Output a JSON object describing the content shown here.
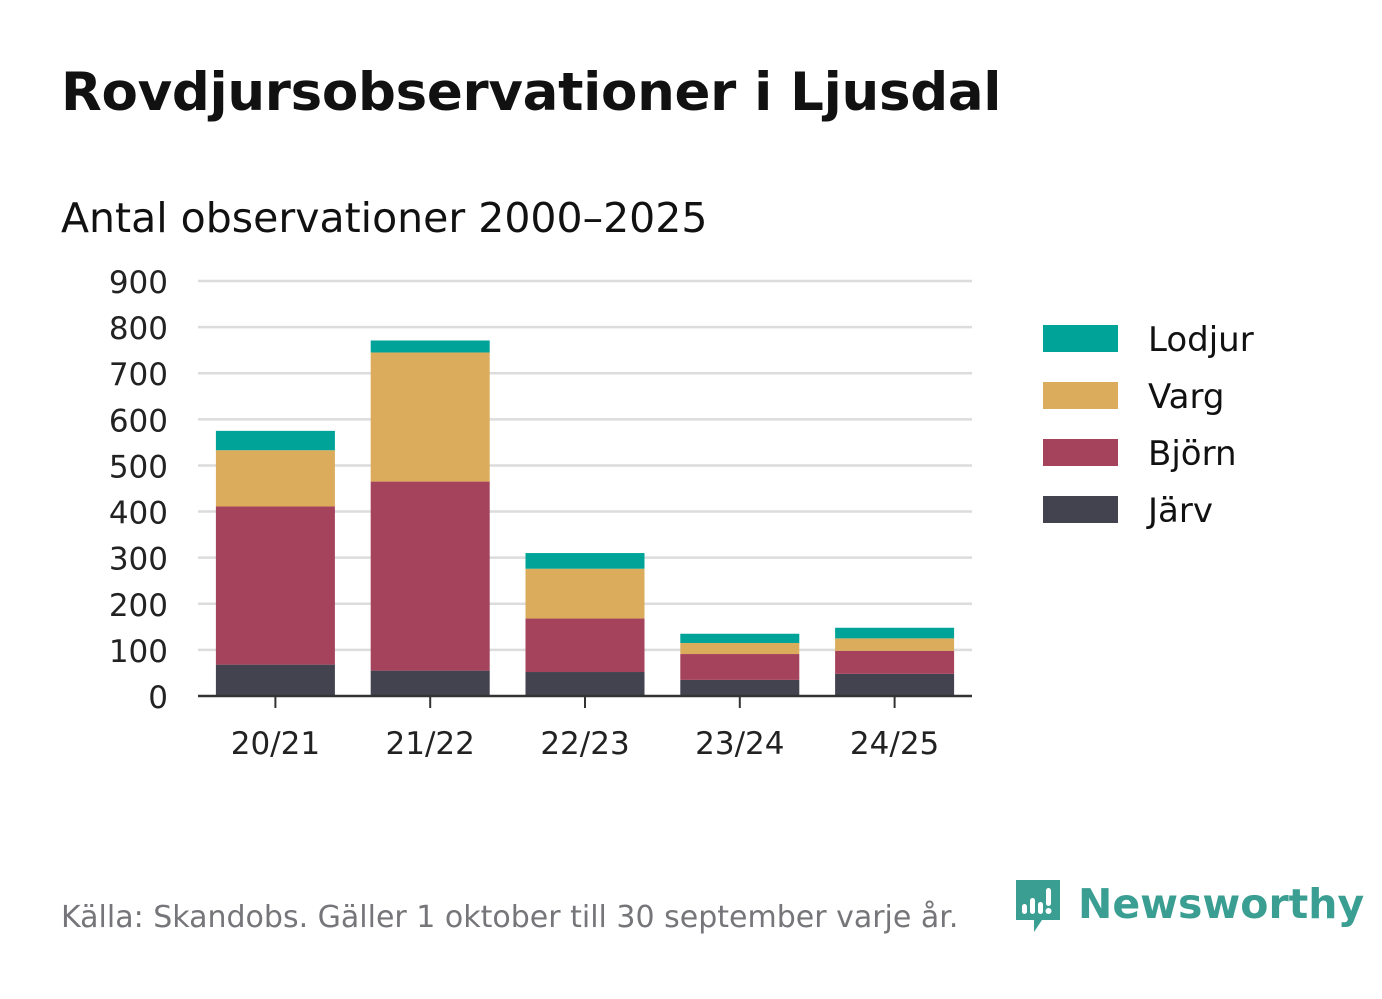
{
  "title": "Rovdjursobservationer i Ljusdal",
  "subtitle": "Antal observationer 2000–2025",
  "source": "Källa: Skandobs. Gäller 1 oktober till 30 september varje år.",
  "brand": "Newsworthy",
  "colors": {
    "lodjur": "#00a398",
    "varg": "#dbac5c",
    "bjorn": "#a5425c",
    "jarv": "#43424f",
    "grid": "#dcdcdc",
    "axis": "#333333",
    "brand": "#3a9e92"
  },
  "chart_data": {
    "type": "bar",
    "stacked": true,
    "title": "Antal observationer 2000–2025",
    "xlabel": "",
    "ylabel": "",
    "ylim": [
      0,
      900
    ],
    "yticks": [
      0,
      100,
      200,
      300,
      400,
      500,
      600,
      700,
      800,
      900
    ],
    "ytick_labels": [
      "0",
      "100",
      "200",
      "300",
      "400",
      "500",
      "600",
      "700",
      "800",
      "900"
    ],
    "grid": true,
    "legend_position": "right",
    "categories": [
      "20/21",
      "21/22",
      "22/23",
      "23/24",
      "24/25"
    ],
    "series": [
      {
        "name": "Järv",
        "key": "jarv",
        "values": [
          68,
          55,
          52,
          35,
          48
        ]
      },
      {
        "name": "Björn",
        "key": "bjorn",
        "values": [
          343,
          410,
          116,
          56,
          50
        ]
      },
      {
        "name": "Varg",
        "key": "varg",
        "values": [
          122,
          280,
          108,
          24,
          27
        ]
      },
      {
        "name": "Lodjur",
        "key": "lodjur",
        "values": [
          42,
          26,
          34,
          20,
          23
        ]
      }
    ],
    "legend_order": [
      "Lodjur",
      "Varg",
      "Björn",
      "Järv"
    ]
  }
}
